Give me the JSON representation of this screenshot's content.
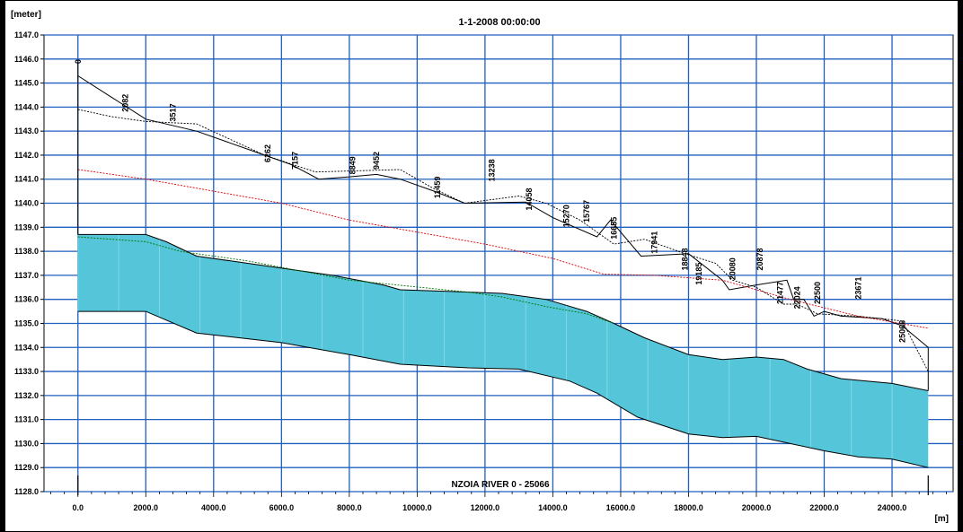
{
  "chart_data": {
    "type": "line",
    "title": "1-1-2008 00:00:00",
    "xlabel": "[m]",
    "ylabel": "[meter]",
    "branch_label": "NZOIA RIVER  0 - 25066",
    "xlim": [
      -1000,
      25800
    ],
    "ylim": [
      1128,
      1147
    ],
    "grid": true,
    "x_ticks": [
      0,
      2000,
      4000,
      6000,
      8000,
      10000,
      12000,
      14000,
      16000,
      18000,
      20000,
      22000,
      24000
    ],
    "x_tick_labels": [
      "0.0",
      "2000.0",
      "4000.0",
      "6000.0",
      "8000.0",
      "10000.0",
      "12000.0",
      "14000.0",
      "16000.0",
      "18000.0",
      "20000.0",
      "22000.0",
      "24000.0"
    ],
    "y_ticks": [
      1128,
      1129,
      1130,
      1131,
      1132,
      1133,
      1134,
      1135,
      1136,
      1137,
      1138,
      1139,
      1140,
      1141,
      1142,
      1143,
      1144,
      1145,
      1146,
      1147
    ],
    "y_tick_labels": [
      "1128.0",
      "1129.0",
      "1130.0",
      "1131.0",
      "1132.0",
      "1133.0",
      "1134.0",
      "1135.0",
      "1136.0",
      "1137.0",
      "1138.0",
      "1139.0",
      "1140.0",
      "1141.0",
      "1142.0",
      "1143.0",
      "1144.0",
      "1145.0",
      "1146.0",
      "1147.0"
    ],
    "chainage_labels": [
      {
        "x": 0,
        "y": 1145.8,
        "text": "0"
      },
      {
        "x": 1400,
        "y": 1143.8,
        "text": "2082"
      },
      {
        "x": 2800,
        "y": 1143.4,
        "text": "3517"
      },
      {
        "x": 5600,
        "y": 1141.7,
        "text": "6262"
      },
      {
        "x": 6400,
        "y": 1141.4,
        "text": "7157"
      },
      {
        "x": 8100,
        "y": 1141.2,
        "text": "8849"
      },
      {
        "x": 8800,
        "y": 1141.4,
        "text": "9452"
      },
      {
        "x": 10600,
        "y": 1140.2,
        "text": "11459"
      },
      {
        "x": 12200,
        "y": 1140.9,
        "text": "13238"
      },
      {
        "x": 13300,
        "y": 1139.7,
        "text": "14058"
      },
      {
        "x": 14400,
        "y": 1139.0,
        "text": "15270"
      },
      {
        "x": 15000,
        "y": 1139.2,
        "text": "15767"
      },
      {
        "x": 15800,
        "y": 1138.5,
        "text": "16655"
      },
      {
        "x": 17000,
        "y": 1137.9,
        "text": "17941"
      },
      {
        "x": 17900,
        "y": 1137.2,
        "text": "18848"
      },
      {
        "x": 18300,
        "y": 1136.6,
        "text": "19185"
      },
      {
        "x": 19300,
        "y": 1136.8,
        "text": "20080"
      },
      {
        "x": 20100,
        "y": 1137.2,
        "text": "20878"
      },
      {
        "x": 20700,
        "y": 1135.8,
        "text": "21477"
      },
      {
        "x": 21200,
        "y": 1135.6,
        "text": "22024"
      },
      {
        "x": 21800,
        "y": 1135.8,
        "text": "22500"
      },
      {
        "x": 23000,
        "y": 1136.0,
        "text": "23671"
      },
      {
        "x": 24300,
        "y": 1134.2,
        "text": "25066"
      }
    ],
    "series": [
      {
        "name": "",
        "style": "solid",
        "color": "#000000",
        "x": [
          0,
          2000,
          3500,
          5500,
          6300,
          7100,
          8000,
          8800,
          9500,
          10500,
          11400,
          13200,
          14000,
          15300,
          15700,
          16600,
          18000,
          19000,
          19200,
          20000,
          20900,
          21100,
          21400,
          21700,
          22000,
          22500,
          23700,
          24300,
          25066
        ],
        "y": [
          1145.3,
          1143.5,
          1143.0,
          1142.0,
          1141.6,
          1141.0,
          1141.1,
          1141.2,
          1141.0,
          1140.5,
          1140.0,
          1140.05,
          1139.4,
          1138.6,
          1139.3,
          1137.8,
          1137.9,
          1136.8,
          1136.4,
          1136.6,
          1136.8,
          1136.0,
          1136.0,
          1135.3,
          1135.5,
          1135.3,
          1135.2,
          1134.9,
          1134.0
        ]
      },
      {
        "name": "",
        "style": "dotted",
        "color": "#000000",
        "x": [
          0,
          1000,
          2000,
          3500,
          5500,
          7000,
          9500,
          10500,
          11400,
          13000,
          13800,
          14800,
          15800,
          16700,
          17900,
          18800,
          19300,
          20000,
          20800,
          21200,
          21800,
          23000,
          24300,
          25066
        ],
        "y": [
          1143.9,
          1143.6,
          1143.4,
          1143.3,
          1142.0,
          1141.3,
          1141.4,
          1140.6,
          1140.0,
          1140.3,
          1140.0,
          1139.3,
          1138.3,
          1138.5,
          1137.9,
          1137.5,
          1136.8,
          1136.5,
          1135.8,
          1135.8,
          1135.4,
          1135.3,
          1135.1,
          1133.0
        ]
      },
      {
        "name": "",
        "style": "dotted",
        "color": "#dd0000",
        "x": [
          0,
          2000,
          4000,
          6000,
          8000,
          10000,
          12000,
          14000,
          15500,
          17000,
          19000,
          21000,
          23000,
          25066
        ],
        "y": [
          1141.4,
          1141.0,
          1140.5,
          1140.0,
          1139.3,
          1138.8,
          1138.3,
          1137.7,
          1137.05,
          1137.0,
          1136.8,
          1136.0,
          1135.3,
          1134.8
        ]
      },
      {
        "name": "",
        "style": "fill-top",
        "color": "#000000",
        "x": [
          0,
          2000,
          2600,
          3500,
          4500,
          6000,
          7500,
          9000,
          9500,
          11500,
          12500,
          13800,
          15000,
          15800,
          16700,
          18000,
          19000,
          20000,
          20800,
          21500,
          22500,
          24000,
          25066
        ],
        "y": [
          1138.7,
          1138.7,
          1138.4,
          1137.8,
          1137.6,
          1137.3,
          1137.0,
          1136.6,
          1136.4,
          1136.3,
          1136.25,
          1136.0,
          1135.5,
          1135.0,
          1134.4,
          1133.7,
          1133.5,
          1133.6,
          1133.5,
          1133.1,
          1132.7,
          1132.5,
          1132.2
        ]
      },
      {
        "name": "",
        "style": "fill-bottom",
        "color": "#000000",
        "x": [
          0,
          2000,
          3500,
          6000,
          8000,
          9500,
          11500,
          13000,
          14500,
          15300,
          16500,
          18000,
          19000,
          20000,
          21000,
          22000,
          23000,
          24000,
          25066
        ],
        "y": [
          1135.5,
          1135.5,
          1134.6,
          1134.2,
          1133.7,
          1133.3,
          1133.15,
          1133.1,
          1132.6,
          1132.1,
          1131.1,
          1130.4,
          1130.25,
          1130.3,
          1130.0,
          1129.7,
          1129.45,
          1129.35,
          1129.0
        ]
      },
      {
        "name": "",
        "style": "dotted",
        "color": "#007700",
        "x": [
          0,
          2000,
          3000,
          5000,
          8000,
          11500,
          12500,
          13800,
          15000,
          15800
        ],
        "y": [
          1138.6,
          1138.4,
          1138.0,
          1137.6,
          1136.8,
          1136.3,
          1136.1,
          1135.7,
          1135.4,
          1135.0
        ]
      }
    ],
    "fill_color": "#55c6d9",
    "grid_color": "#1f5fbf"
  }
}
